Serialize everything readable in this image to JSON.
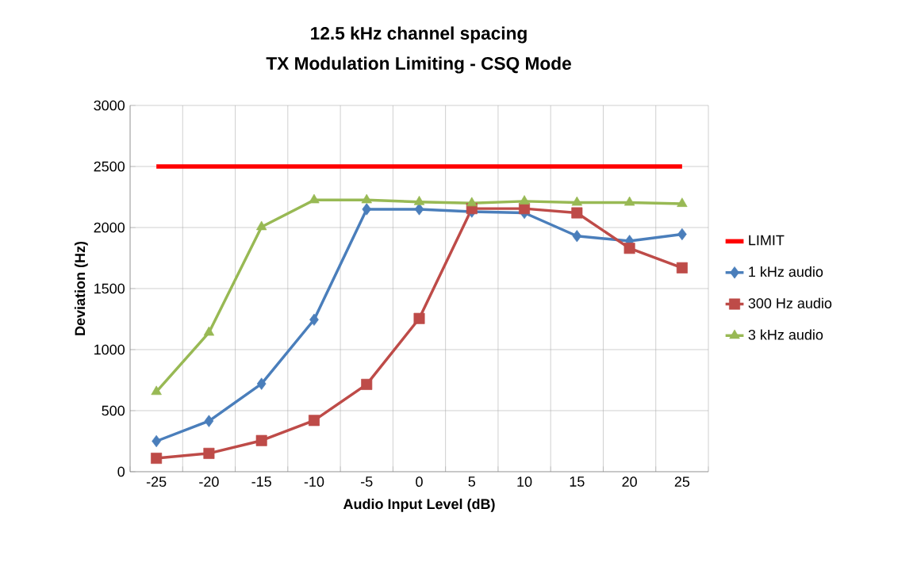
{
  "chart_data": {
    "type": "line",
    "title": "12.5 kHz channel spacing",
    "subtitle": "TX Modulation Limiting - CSQ Mode",
    "xlabel": "Audio Input Level (dB)",
    "ylabel": "Deviation (Hz)",
    "categories": [
      "-25",
      "-20",
      "-15",
      "-10",
      "-5",
      "0",
      "5",
      "10",
      "15",
      "20",
      "25"
    ],
    "series": [
      {
        "name": "LIMIT",
        "color": "#ff0000",
        "marker": "none",
        "values": [
          2500,
          2500,
          2500,
          2500,
          2500,
          2500,
          2500,
          2500,
          2500,
          2500,
          2500
        ]
      },
      {
        "name": "1 kHz audio",
        "color": "#4a7ebb",
        "marker": "diamond",
        "values": [
          250,
          415,
          720,
          1245,
          2150,
          2150,
          2130,
          2120,
          1930,
          1890,
          1945
        ]
      },
      {
        "name": "300 Hz audio",
        "color": "#be4b48",
        "marker": "square",
        "values": [
          110,
          150,
          255,
          420,
          715,
          1255,
          2155,
          2155,
          2120,
          1830,
          1670
        ]
      },
      {
        "name": "3 kHz audio",
        "color": "#98b954",
        "marker": "triangle",
        "values": [
          655,
          1140,
          2005,
          2225,
          2225,
          2210,
          2200,
          2215,
          2205,
          2205,
          2195
        ]
      }
    ],
    "ylim": [
      0,
      3000
    ],
    "yticks": [
      0,
      500,
      1000,
      1500,
      2000,
      2500,
      3000
    ],
    "grid": true,
    "legend": "right",
    "line_style": "solid"
  }
}
